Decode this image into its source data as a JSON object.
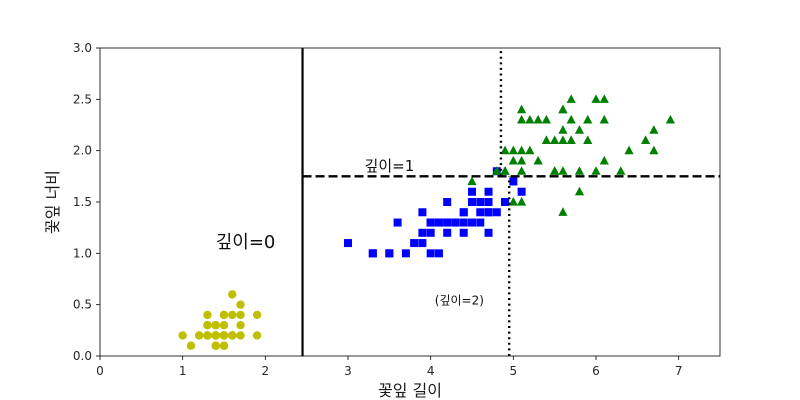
{
  "chart_data": {
    "type": "scatter",
    "xlabel": "꽃잎 길이",
    "ylabel": "꽃잎 너비",
    "xlim": [
      0,
      7.5
    ],
    "ylim": [
      0,
      3.0
    ],
    "xticks": [
      "0",
      "1",
      "2",
      "3",
      "4",
      "5",
      "6",
      "7"
    ],
    "yticks": [
      "0.0",
      "0.5",
      "1.0",
      "1.5",
      "2.0",
      "2.5",
      "3.0"
    ],
    "grid": false,
    "series": [
      {
        "marker": "circle",
        "color": "#bfbf00",
        "points": [
          [
            1.4,
            0.2
          ],
          [
            1.4,
            0.2
          ],
          [
            1.3,
            0.2
          ],
          [
            1.5,
            0.2
          ],
          [
            1.4,
            0.2
          ],
          [
            1.7,
            0.4
          ],
          [
            1.4,
            0.3
          ],
          [
            1.5,
            0.2
          ],
          [
            1.4,
            0.2
          ],
          [
            1.5,
            0.1
          ],
          [
            1.5,
            0.2
          ],
          [
            1.6,
            0.2
          ],
          [
            1.4,
            0.1
          ],
          [
            1.1,
            0.1
          ],
          [
            1.2,
            0.2
          ],
          [
            1.5,
            0.4
          ],
          [
            1.3,
            0.4
          ],
          [
            1.4,
            0.3
          ],
          [
            1.7,
            0.3
          ],
          [
            1.5,
            0.3
          ],
          [
            1.7,
            0.2
          ],
          [
            1.5,
            0.4
          ],
          [
            1.0,
            0.2
          ],
          [
            1.7,
            0.5
          ],
          [
            1.9,
            0.2
          ],
          [
            1.6,
            0.2
          ],
          [
            1.6,
            0.4
          ],
          [
            1.5,
            0.2
          ],
          [
            1.4,
            0.2
          ],
          [
            1.6,
            0.2
          ],
          [
            1.6,
            0.2
          ],
          [
            1.5,
            0.4
          ],
          [
            1.5,
            0.1
          ],
          [
            1.4,
            0.2
          ],
          [
            1.5,
            0.2
          ],
          [
            1.2,
            0.2
          ],
          [
            1.3,
            0.2
          ],
          [
            1.4,
            0.1
          ],
          [
            1.3,
            0.2
          ],
          [
            1.5,
            0.2
          ],
          [
            1.3,
            0.3
          ],
          [
            1.3,
            0.3
          ],
          [
            1.3,
            0.2
          ],
          [
            1.6,
            0.6
          ],
          [
            1.9,
            0.4
          ],
          [
            1.4,
            0.3
          ],
          [
            1.6,
            0.2
          ],
          [
            1.4,
            0.2
          ],
          [
            1.5,
            0.2
          ],
          [
            1.4,
            0.2
          ]
        ]
      },
      {
        "marker": "square",
        "color": "#0000ff",
        "points": [
          [
            4.7,
            1.4
          ],
          [
            4.5,
            1.5
          ],
          [
            4.9,
            1.5
          ],
          [
            4.0,
            1.3
          ],
          [
            4.6,
            1.5
          ],
          [
            4.5,
            1.3
          ],
          [
            4.7,
            1.6
          ],
          [
            3.3,
            1.0
          ],
          [
            4.6,
            1.3
          ],
          [
            3.9,
            1.4
          ],
          [
            3.5,
            1.0
          ],
          [
            4.2,
            1.5
          ],
          [
            4.0,
            1.0
          ],
          [
            4.7,
            1.4
          ],
          [
            3.6,
            1.3
          ],
          [
            4.4,
            1.4
          ],
          [
            4.5,
            1.5
          ],
          [
            4.1,
            1.0
          ],
          [
            4.5,
            1.5
          ],
          [
            3.9,
            1.1
          ],
          [
            4.8,
            1.8
          ],
          [
            4.0,
            1.3
          ],
          [
            4.9,
            1.5
          ],
          [
            4.7,
            1.2
          ],
          [
            4.3,
            1.3
          ],
          [
            4.4,
            1.4
          ],
          [
            4.8,
            1.4
          ],
          [
            5.0,
            1.7
          ],
          [
            4.5,
            1.5
          ],
          [
            3.5,
            1.0
          ],
          [
            3.8,
            1.1
          ],
          [
            3.7,
            1.0
          ],
          [
            3.9,
            1.2
          ],
          [
            5.1,
            1.6
          ],
          [
            4.5,
            1.5
          ],
          [
            4.5,
            1.6
          ],
          [
            4.7,
            1.5
          ],
          [
            4.4,
            1.3
          ],
          [
            4.1,
            1.3
          ],
          [
            4.0,
            1.3
          ],
          [
            4.4,
            1.2
          ],
          [
            4.6,
            1.4
          ],
          [
            4.0,
            1.2
          ],
          [
            3.3,
            1.0
          ],
          [
            4.2,
            1.3
          ],
          [
            4.2,
            1.2
          ],
          [
            4.2,
            1.3
          ],
          [
            4.3,
            1.3
          ],
          [
            3.0,
            1.1
          ],
          [
            4.1,
            1.3
          ]
        ]
      },
      {
        "marker": "triangle",
        "color": "#008000",
        "points": [
          [
            6.0,
            2.5
          ],
          [
            5.1,
            1.9
          ],
          [
            5.9,
            2.1
          ],
          [
            5.6,
            1.8
          ],
          [
            5.8,
            2.2
          ],
          [
            6.6,
            2.1
          ],
          [
            4.5,
            1.7
          ],
          [
            6.3,
            1.8
          ],
          [
            5.8,
            1.8
          ],
          [
            6.1,
            2.5
          ],
          [
            5.1,
            2.0
          ],
          [
            5.3,
            1.9
          ],
          [
            5.5,
            2.1
          ],
          [
            5.0,
            2.0
          ],
          [
            5.1,
            2.4
          ],
          [
            5.3,
            2.3
          ],
          [
            5.5,
            1.8
          ],
          [
            6.7,
            2.2
          ],
          [
            6.9,
            2.3
          ],
          [
            5.0,
            1.5
          ],
          [
            5.7,
            2.3
          ],
          [
            4.9,
            2.0
          ],
          [
            6.7,
            2.0
          ],
          [
            4.9,
            1.8
          ],
          [
            5.7,
            2.1
          ],
          [
            6.0,
            1.8
          ],
          [
            4.8,
            1.8
          ],
          [
            4.9,
            1.8
          ],
          [
            5.6,
            2.1
          ],
          [
            5.8,
            1.6
          ],
          [
            6.1,
            1.9
          ],
          [
            6.4,
            2.0
          ],
          [
            5.6,
            2.2
          ],
          [
            5.1,
            1.5
          ],
          [
            5.6,
            1.4
          ],
          [
            6.1,
            2.3
          ],
          [
            5.6,
            2.4
          ],
          [
            5.5,
            1.8
          ],
          [
            4.8,
            1.8
          ],
          [
            5.4,
            2.1
          ],
          [
            5.6,
            2.4
          ],
          [
            5.1,
            2.3
          ],
          [
            5.9,
            2.3
          ],
          [
            5.7,
            2.5
          ],
          [
            5.2,
            2.3
          ],
          [
            5.0,
            1.9
          ],
          [
            5.2,
            2.0
          ],
          [
            5.4,
            2.3
          ],
          [
            5.1,
            1.8
          ]
        ]
      }
    ],
    "boundaries": [
      {
        "orientation": "vertical",
        "x": 2.45,
        "y_range": [
          0,
          3.0
        ],
        "style": "solid",
        "label": "깊이=0",
        "label_pos": [
          1.4,
          1.05
        ]
      },
      {
        "orientation": "horizontal",
        "y": 1.75,
        "x_range": [
          2.45,
          7.5
        ],
        "style": "dashed",
        "label": "깊이=1",
        "label_pos": [
          3.2,
          1.8
        ]
      },
      {
        "orientation": "vertical",
        "x": 4.95,
        "y_range": [
          0,
          1.75
        ],
        "style": "dotted",
        "label": "(깊이=2)",
        "label_pos": [
          4.05,
          0.5
        ]
      },
      {
        "orientation": "vertical",
        "x": 4.85,
        "y_range": [
          1.75,
          3.0
        ],
        "style": "dotted",
        "label": "",
        "label_pos": null
      }
    ]
  }
}
